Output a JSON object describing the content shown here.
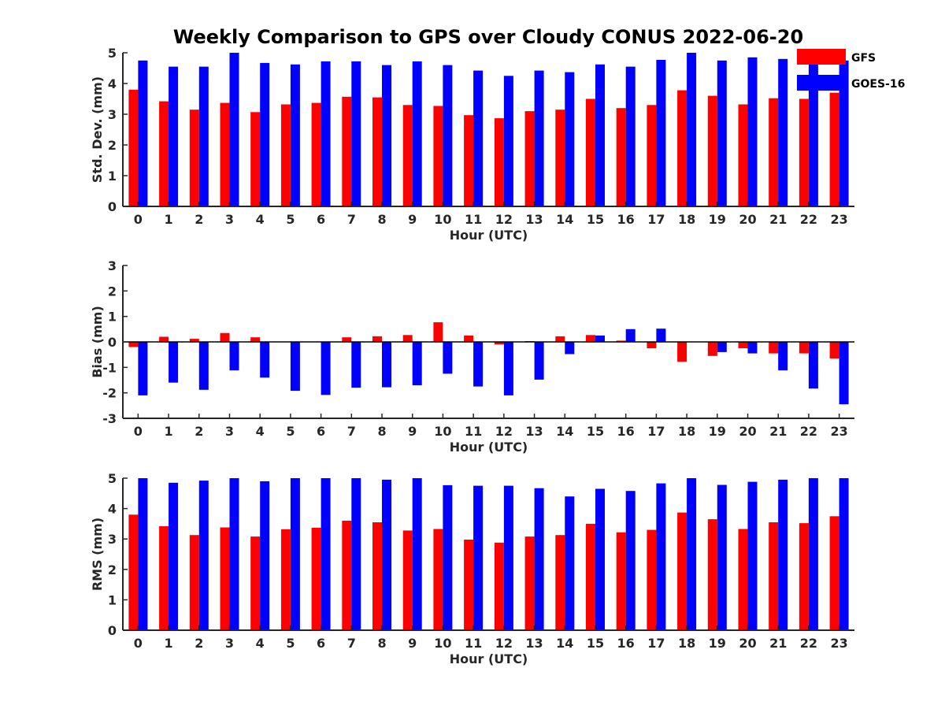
{
  "chart_data": {
    "title": "Weekly Comparison to GPS over Cloudy CONUS 2022-06-20",
    "legend": {
      "placement": "top-right",
      "entries": [
        "GFS",
        "GOES-16"
      ]
    },
    "series_colors": {
      "GFS": "#ff0000",
      "GOES-16": "#0000ff"
    },
    "panels": [
      {
        "type": "bar",
        "xlabel": "Hour (UTC)",
        "ylabel": "Std. Dev. (mm)",
        "ylim": [
          0,
          5
        ],
        "yticks": [
          "0",
          "1",
          "2",
          "3",
          "4",
          "5"
        ],
        "categories": [
          "0",
          "1",
          "2",
          "3",
          "4",
          "5",
          "6",
          "7",
          "8",
          "9",
          "10",
          "11",
          "12",
          "13",
          "14",
          "15",
          "16",
          "17",
          "18",
          "19",
          "20",
          "21",
          "22",
          "23"
        ],
        "series": [
          {
            "name": "GFS",
            "values": [
              3.8,
              3.42,
              3.15,
              3.37,
              3.07,
              3.32,
              3.37,
              3.57,
              3.55,
              3.3,
              3.27,
              2.97,
              2.87,
              3.1,
              3.15,
              3.5,
              3.2,
              3.3,
              3.78,
              3.6,
              3.32,
              3.52,
              3.5,
              3.7
            ]
          },
          {
            "name": "GOES-16",
            "values": [
              4.75,
              4.55,
              4.55,
              5.0,
              4.67,
              4.62,
              4.72,
              4.72,
              4.6,
              4.72,
              4.6,
              4.42,
              4.25,
              4.42,
              4.37,
              4.62,
              4.55,
              4.77,
              5.0,
              4.75,
              4.85,
              4.8,
              4.7,
              4.75
            ]
          }
        ]
      },
      {
        "type": "bar",
        "xlabel": "Hour (UTC)",
        "ylabel": "Bias (mm)",
        "ylim": [
          -3,
          3
        ],
        "yticks": [
          "-3",
          "-2",
          "-1",
          "0",
          "1",
          "2",
          "3"
        ],
        "categories": [
          "0",
          "1",
          "2",
          "3",
          "4",
          "5",
          "6",
          "7",
          "8",
          "9",
          "10",
          "11",
          "12",
          "13",
          "14",
          "15",
          "16",
          "17",
          "18",
          "19",
          "20",
          "21",
          "22",
          "23"
        ],
        "series": [
          {
            "name": "GFS",
            "values": [
              -0.2,
              0.2,
              0.12,
              0.35,
              0.18,
              0.0,
              0.0,
              0.18,
              0.22,
              0.27,
              0.77,
              0.25,
              -0.1,
              0.03,
              0.22,
              0.27,
              0.05,
              -0.25,
              -0.78,
              -0.55,
              -0.25,
              -0.45,
              -0.45,
              -0.65
            ]
          },
          {
            "name": "GOES-16",
            "values": [
              -2.1,
              -1.6,
              -1.88,
              -1.12,
              -1.4,
              -1.92,
              -2.08,
              -1.8,
              -1.78,
              -1.7,
              -1.25,
              -1.75,
              -2.1,
              -1.48,
              -0.48,
              0.25,
              0.5,
              0.52,
              0.0,
              -0.4,
              -0.45,
              -1.12,
              -1.83,
              -2.45
            ]
          }
        ]
      },
      {
        "type": "bar",
        "xlabel": "Hour (UTC)",
        "ylabel": "RMS (mm)",
        "ylim": [
          0,
          5
        ],
        "yticks": [
          "0",
          "1",
          "2",
          "3",
          "4",
          "5"
        ],
        "categories": [
          "0",
          "1",
          "2",
          "3",
          "4",
          "5",
          "6",
          "7",
          "8",
          "9",
          "10",
          "11",
          "12",
          "13",
          "14",
          "15",
          "16",
          "17",
          "18",
          "19",
          "20",
          "21",
          "22",
          "23"
        ],
        "series": [
          {
            "name": "GFS",
            "values": [
              3.8,
              3.42,
              3.13,
              3.38,
              3.08,
              3.32,
              3.37,
              3.6,
              3.55,
              3.28,
              3.33,
              2.98,
              2.88,
              3.08,
              3.13,
              3.5,
              3.22,
              3.3,
              3.87,
              3.65,
              3.33,
              3.55,
              3.52,
              3.75
            ]
          },
          {
            "name": "GOES-16",
            "values": [
              5.0,
              4.85,
              4.92,
              5.0,
              4.9,
              5.0,
              5.0,
              5.0,
              4.95,
              5.0,
              4.77,
              4.75,
              4.75,
              4.67,
              4.4,
              4.65,
              4.58,
              4.83,
              5.0,
              4.78,
              4.88,
              4.95,
              5.0,
              5.0
            ]
          }
        ]
      }
    ]
  }
}
